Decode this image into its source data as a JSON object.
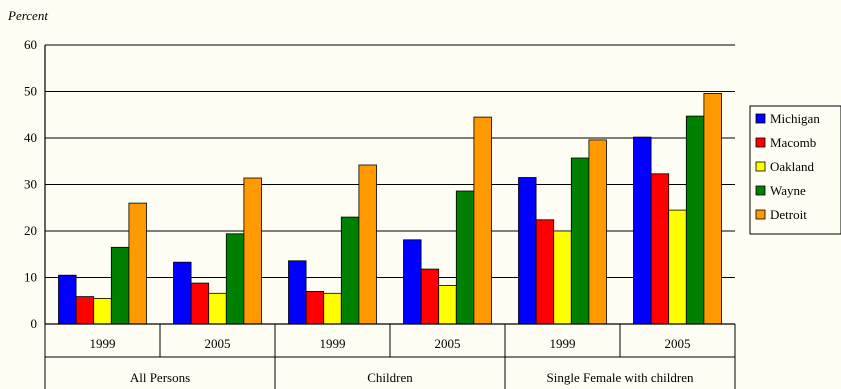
{
  "chart_data": {
    "type": "bar",
    "ylabel": "Percent",
    "ylim": [
      0,
      60
    ],
    "yticks": [
      0,
      10,
      20,
      30,
      40,
      50,
      60
    ],
    "groups": [
      {
        "label": "All Persons",
        "years": [
          "1999",
          "2005"
        ]
      },
      {
        "label": "Children",
        "years": [
          "1999",
          "2005"
        ]
      },
      {
        "label": "Single Female with children",
        "years": [
          "1999",
          "2005"
        ]
      }
    ],
    "categories": [
      "All Persons 1999",
      "All Persons 2005",
      "Children 1999",
      "Children 2005",
      "Single Female with children 1999",
      "Single Female with children 2005"
    ],
    "series": [
      {
        "name": "Michigan",
        "color": "#0000ff",
        "values": [
          10.5,
          13.3,
          13.6,
          18.1,
          31.5,
          40.2
        ]
      },
      {
        "name": "Macomb",
        "color": "#ff0000",
        "values": [
          5.9,
          8.8,
          7.0,
          11.8,
          22.4,
          32.3
        ]
      },
      {
        "name": "Oakland",
        "color": "#ffff00",
        "values": [
          5.5,
          6.6,
          6.6,
          8.3,
          20.0,
          24.5
        ]
      },
      {
        "name": "Wayne",
        "color": "#008000",
        "values": [
          16.5,
          19.4,
          23.0,
          28.6,
          35.7,
          44.7
        ]
      },
      {
        "name": "Detroit",
        "color": "#ff9900",
        "values": [
          26.0,
          31.4,
          34.2,
          44.5,
          39.6,
          49.6
        ]
      }
    ],
    "legend_position": "right",
    "grid": true
  }
}
